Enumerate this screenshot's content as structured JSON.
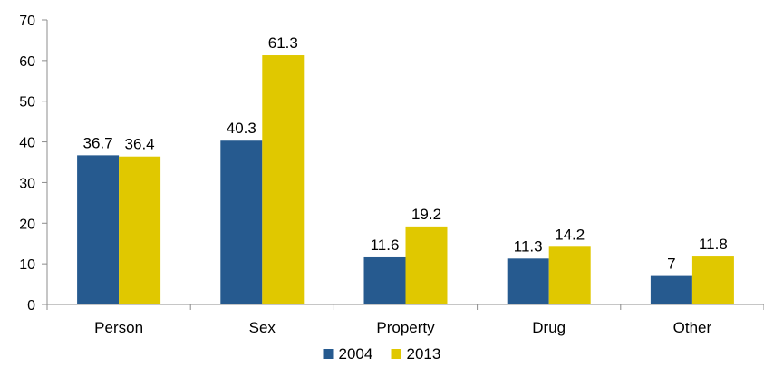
{
  "chart_data": {
    "type": "bar",
    "categories": [
      "Person",
      "Sex",
      "Property",
      "Drug",
      "Other"
    ],
    "series": [
      {
        "name": "2004",
        "values": [
          36.7,
          40.3,
          11.6,
          11.3,
          7
        ],
        "color": "#265a8f"
      },
      {
        "name": "2013",
        "values": [
          36.4,
          61.3,
          19.2,
          14.2,
          11.8
        ],
        "color": "#e0c800"
      }
    ],
    "value_labels": [
      [
        "36.7",
        "40.3",
        "11.6",
        "11.3",
        "7"
      ],
      [
        "36.4",
        "61.3",
        "19.2",
        "14.2",
        "11.8"
      ]
    ],
    "title": "",
    "xlabel": "",
    "ylabel": "",
    "ylim": [
      0,
      70
    ],
    "yticks": [
      0,
      10,
      20,
      30,
      40,
      50,
      60,
      70
    ],
    "ytick_labels": [
      "0",
      "10",
      "20",
      "30",
      "40",
      "50",
      "60",
      "70"
    ],
    "grid": false,
    "legend_position": "bottom",
    "axis_color": "#8c8c8c"
  }
}
